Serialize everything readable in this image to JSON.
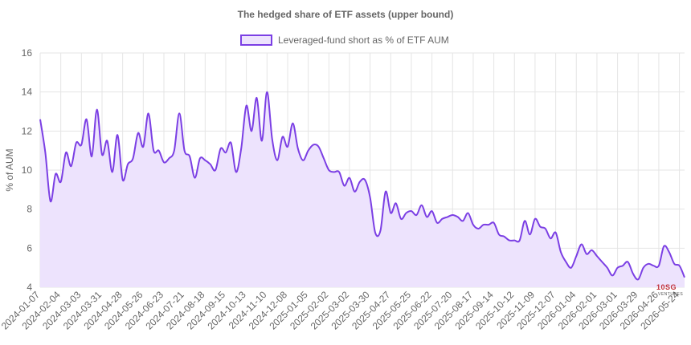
{
  "chart_data": {
    "type": "area",
    "title": "The hedged share of ETF assets (upper bound)",
    "ylabel": "% of AUM",
    "xlabel": "",
    "ylim": [
      4,
      16
    ],
    "yticks": [
      4,
      6,
      8,
      10,
      12,
      14,
      16
    ],
    "grid": true,
    "legend_position": "top",
    "colors": {
      "line": "#7b3fe4",
      "fill": "#ede3fd",
      "grid": "#e5e5e5"
    },
    "x_tick_labels": [
      "2024-01-07",
      "2024-02-04",
      "2024-03-03",
      "2024-03-31",
      "2024-04-28",
      "2024-05-26",
      "2024-06-23",
      "2024-07-21",
      "2024-08-18",
      "2024-09-15",
      "2024-10-13",
      "2024-11-10",
      "2024-12-08",
      "2025-01-05",
      "2025-02-02",
      "2025-03-02",
      "2025-03-30",
      "2025-04-27",
      "2025-05-25",
      "2025-06-22",
      "2025-07-20",
      "2025-08-17",
      "2025-09-14",
      "2025-10-12",
      "2025-11-09",
      "2025-12-07",
      "2026-01-04",
      "2026-02-01",
      "2026-03-01",
      "2026-03-29",
      "2026-04-26",
      "2026-05-24"
    ],
    "series": [
      {
        "name": "Leveraged-fund short as % of ETF AUM",
        "points_per_tick": 4,
        "values": [
          12.6,
          10.9,
          8.4,
          9.8,
          9.4,
          10.9,
          10.2,
          11.4,
          11.3,
          12.6,
          10.7,
          13.1,
          10.8,
          11.5,
          9.9,
          11.8,
          9.5,
          10.3,
          10.6,
          11.9,
          11.2,
          12.9,
          11.0,
          11.0,
          10.4,
          10.6,
          11.0,
          12.9,
          11.0,
          10.7,
          9.6,
          10.6,
          10.5,
          10.3,
          10.0,
          11.1,
          10.9,
          11.4,
          9.9,
          11.1,
          13.3,
          12.0,
          13.7,
          11.5,
          14.0,
          11.6,
          10.5,
          11.7,
          11.2,
          12.4,
          11.1,
          10.5,
          11.0,
          11.3,
          11.2,
          10.6,
          10.0,
          9.9,
          9.9,
          9.2,
          9.6,
          8.9,
          9.4,
          9.5,
          8.6,
          6.8,
          6.9,
          8.9,
          7.8,
          8.3,
          7.5,
          7.8,
          7.9,
          7.7,
          8.2,
          7.6,
          7.9,
          7.3,
          7.5,
          7.6,
          7.7,
          7.6,
          7.4,
          7.8,
          7.2,
          7.0,
          7.2,
          7.2,
          7.3,
          6.7,
          6.6,
          6.4,
          6.4,
          6.4,
          7.4,
          6.7,
          7.5,
          7.1,
          7.0,
          6.5,
          6.8,
          5.8,
          5.3,
          5.0,
          5.6,
          6.2,
          5.7,
          5.9,
          5.6,
          5.3,
          5.0,
          4.6,
          5.0,
          5.1,
          5.3,
          4.7,
          4.4,
          5.0,
          5.2,
          5.1,
          5.1,
          6.1,
          5.8,
          5.2,
          5.1,
          4.5
        ]
      }
    ]
  },
  "watermark": {
    "brand": "10SG",
    "sub": "VENTURES"
  }
}
